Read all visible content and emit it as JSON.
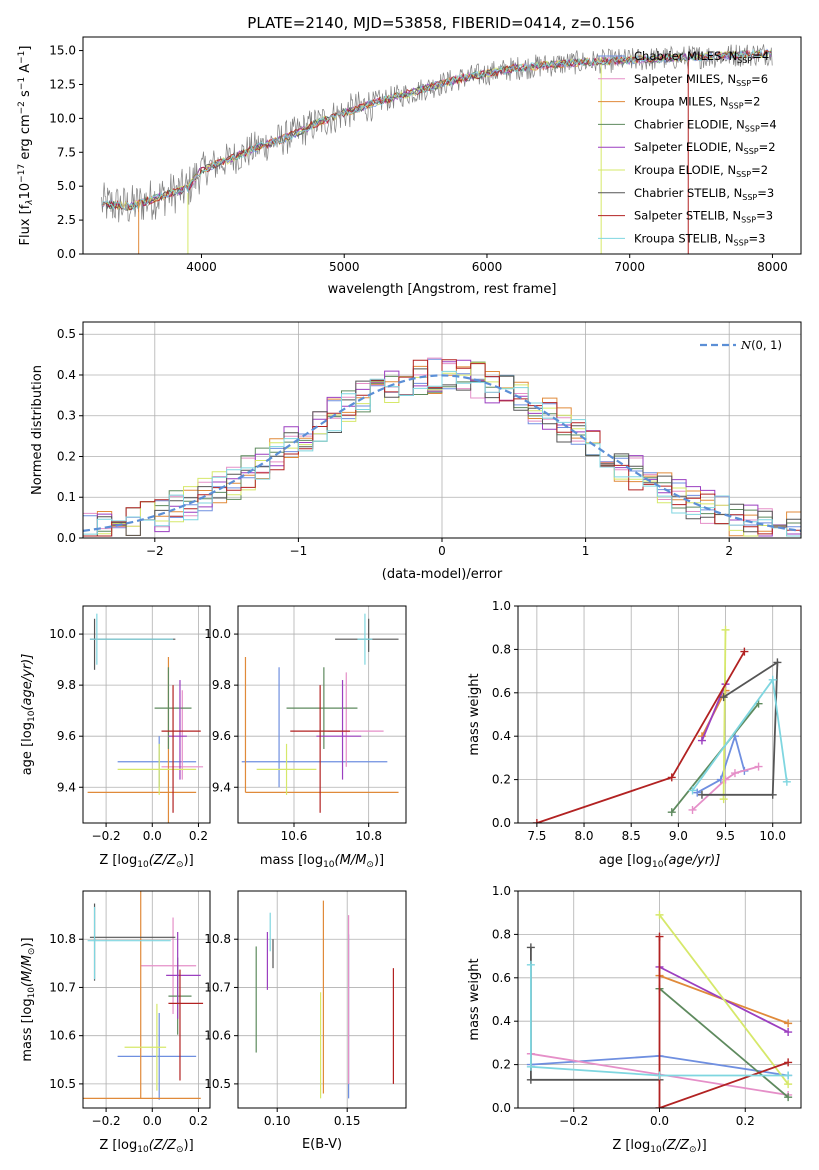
{
  "figure": {
    "title": "PLATE=2140, MJD=53858, FIBERID=0414, z=0.156"
  },
  "colors": {
    "Chabrier MILES": "#6f8fe0",
    "Salpeter MILES": "#e58fc8",
    "Kroupa MILES": "#e08a3a",
    "Chabrier ELODIE": "#5e8a5e",
    "Salpeter ELODIE": "#9b3fc0",
    "Kroupa ELODIE": "#d6e86a",
    "Chabrier STELIB": "#555555",
    "Salpeter STELIB": "#b22222",
    "Kroupa STELIB": "#7fd6e0",
    "spectrum": "#7f7f7f",
    "gaussian": "#5b8fd6"
  },
  "chart_data": [
    {
      "id": "spectrum",
      "type": "line",
      "xlabel": "wavelength [Angstrom, rest frame]",
      "ylabel": "Flux [f",
      "ylabel_tex": "λ",
      "ylabel_rest": "10",
      "ylabel_exp": "−17",
      "ylabel_tail": " erg cm",
      "ylabel_exp2": "−2",
      "ylabel_tail2": " s",
      "ylabel_exp3": "−1",
      "ylabel_tail3": " A",
      "ylabel_exp4": "−1",
      "ylabel_end": "]",
      "xlim": [
        3170,
        8200
      ],
      "ylim": [
        0,
        16
      ],
      "xticks": [
        "4000",
        "5000",
        "6000",
        "7000",
        "8000"
      ],
      "yticks": [
        "0.0",
        "2.5",
        "5.0",
        "7.5",
        "10.0",
        "12.5",
        "15.0"
      ],
      "legend_position": "top-right",
      "legend": [
        {
          "name": "Chabrier MILES",
          "pre": "Chabrier MILES, N",
          "sub": "SSP",
          "post": "=4"
        },
        {
          "name": "Salpeter MILES",
          "pre": "Salpeter MILES, N",
          "sub": "SSP",
          "post": "=6"
        },
        {
          "name": "Kroupa MILES",
          "pre": "Kroupa MILES, N",
          "sub": "SSP",
          "post": "=2"
        },
        {
          "name": "Chabrier ELODIE",
          "pre": "Chabrier ELODIE, N",
          "sub": "SSP",
          "post": "=4"
        },
        {
          "name": "Salpeter ELODIE",
          "pre": "Salpeter ELODIE, N",
          "sub": "SSP",
          "post": "=2"
        },
        {
          "name": "Kroupa ELODIE",
          "pre": "Kroupa ELODIE, N",
          "sub": "SSP",
          "post": "=2"
        },
        {
          "name": "Chabrier STELIB",
          "pre": "Chabrier STELIB, N",
          "sub": "SSP",
          "post": "=3"
        },
        {
          "name": "Salpeter STELIB",
          "pre": "Salpeter STELIB, N",
          "sub": "SSP",
          "post": "=3"
        },
        {
          "name": "Kroupa STELIB",
          "pre": "Kroupa STELIB, N",
          "sub": "SSP",
          "post": "=3"
        }
      ],
      "continuum": {
        "x": [
          3300,
          3500,
          3700,
          3900,
          4000,
          4200,
          4400,
          4600,
          4800,
          5000,
          5200,
          5400,
          5600,
          5800,
          6000,
          6200,
          6400,
          6600,
          6800,
          7000,
          7200,
          7400,
          7600,
          7800,
          8000
        ],
        "y": [
          3.7,
          3.5,
          4.2,
          4.8,
          6.2,
          7.0,
          7.9,
          8.6,
          9.6,
          10.4,
          11.1,
          11.7,
          12.3,
          12.9,
          13.3,
          13.7,
          13.9,
          14.1,
          14.2,
          14.3,
          14.4,
          14.5,
          14.6,
          14.7,
          14.8
        ]
      }
    },
    {
      "id": "residuals",
      "type": "step",
      "xlabel": "(data-model)/error",
      "ylabel": "Normed distribution",
      "xlim": [
        -2.5,
        2.5
      ],
      "ylim": [
        0,
        0.53
      ],
      "xticks": [
        "−2",
        "−1",
        "0",
        "1",
        "2"
      ],
      "yticks": [
        "0.0",
        "0.1",
        "0.2",
        "0.3",
        "0.4",
        "0.5"
      ],
      "legend": {
        "pre": "N",
        "post": "(0, 1)"
      },
      "legend_position": "top-right",
      "gaussian": {
        "mean": 0,
        "sigma": 1
      }
    },
    {
      "id": "age-Z",
      "type": "errorbar",
      "xlabel": "Z [log",
      "xlabel_sub": "10",
      "xlabel_tail": "(Z/Z",
      "xlabel_sun": "⊙",
      "xlabel_end": ")]",
      "ylabel": "age  [log",
      "ylabel_sub": "10",
      "ylabel_tail": "(age/yr)]",
      "xlim": [
        -0.3,
        0.25
      ],
      "ylim": [
        9.26,
        10.11
      ],
      "xticks": [
        "−0.2",
        "0.0",
        "0.2"
      ],
      "yticks": [
        "9.4",
        "9.6",
        "9.8",
        "10.0"
      ],
      "points": [
        {
          "series": "Chabrier MILES",
          "x": 0.03,
          "xerr": [
            0.18,
            0.16
          ],
          "y": 9.5,
          "yerr": [
            0.1,
            0.1
          ]
        },
        {
          "series": "Salpeter MILES",
          "x": 0.13,
          "xerr": [
            0.09,
            0.09
          ],
          "y": 9.48,
          "yerr": [
            0.05,
            0.3
          ]
        },
        {
          "series": "Kroupa MILES",
          "x": 0.07,
          "xerr": [
            0.35,
            0.12
          ],
          "y": 9.38,
          "yerr": [
            0.12,
            0.53
          ]
        },
        {
          "series": "Chabrier ELODIE",
          "x": 0.07,
          "xerr": [
            0.06,
            0.1
          ],
          "y": 9.71,
          "yerr": [
            0.16,
            0.16
          ]
        },
        {
          "series": "Salpeter ELODIE",
          "x": 0.12,
          "xerr": [
            0.05,
            0.03
          ],
          "y": 9.6,
          "yerr": [
            0.17,
            0.22
          ]
        },
        {
          "series": "Kroupa ELODIE",
          "x": 0.03,
          "xerr": [
            0.18,
            0.16
          ],
          "y": 9.47,
          "yerr": [
            0.1,
            0.1
          ]
        },
        {
          "series": "Chabrier STELIB",
          "x": -0.25,
          "xerr": [
            0.02,
            0.35
          ],
          "y": 9.98,
          "yerr": [
            0.12,
            0.08
          ]
        },
        {
          "series": "Salpeter STELIB",
          "x": 0.09,
          "xerr": [
            0.05,
            0.12
          ],
          "y": 9.62,
          "yerr": [
            0.32,
            0.18
          ]
        },
        {
          "series": "Kroupa STELIB",
          "x": -0.24,
          "xerr": [
            0.03,
            0.33
          ],
          "y": 9.98,
          "yerr": [
            0.1,
            0.1
          ]
        }
      ]
    },
    {
      "id": "age-mass",
      "type": "errorbar",
      "xlabel": "mass [log",
      "xlabel_sub": "10",
      "xlabel_tail": "(M/M",
      "xlabel_sun": "⊙",
      "xlabel_end": ")]",
      "ylabel": "",
      "xlim": [
        10.45,
        10.9
      ],
      "ylim": [
        9.26,
        10.11
      ],
      "xticks": [
        "10.6",
        "10.8"
      ],
      "yticks": [
        "9.4",
        "9.6",
        "9.8",
        "10.0"
      ],
      "points": [
        {
          "series": "Chabrier MILES",
          "x": 10.56,
          "xerr": [
            0.1,
            0.29
          ],
          "y": 9.5,
          "yerr": [
            0.1,
            0.37
          ]
        },
        {
          "series": "Salpeter MILES",
          "x": 10.74,
          "xerr": [
            0.05,
            0.1
          ],
          "y": 9.62,
          "yerr": [
            0.14,
            0.23
          ]
        },
        {
          "series": "Kroupa MILES",
          "x": 10.47,
          "xerr": [
            0.0,
            0.41
          ],
          "y": 9.38,
          "yerr": [
            0.0,
            0.53
          ]
        },
        {
          "series": "Chabrier ELODIE",
          "x": 10.68,
          "xerr": [
            0.1,
            0.09
          ],
          "y": 9.71,
          "yerr": [
            0.16,
            0.16
          ]
        },
        {
          "series": "Salpeter ELODIE",
          "x": 10.73,
          "xerr": [
            0.07,
            0.05
          ],
          "y": 9.6,
          "yerr": [
            0.17,
            0.22
          ]
        },
        {
          "series": "Kroupa ELODIE",
          "x": 10.58,
          "xerr": [
            0.08,
            0.08
          ],
          "y": 9.47,
          "yerr": [
            0.1,
            0.1
          ]
        },
        {
          "series": "Chabrier STELIB",
          "x": 10.8,
          "xerr": [
            0.09,
            0.08
          ],
          "y": 9.98,
          "yerr": [
            0.05,
            0.08
          ]
        },
        {
          "series": "Salpeter STELIB",
          "x": 10.67,
          "xerr": [
            0.08,
            0.08
          ],
          "y": 9.62,
          "yerr": [
            0.32,
            0.18
          ]
        },
        {
          "series": "Kroupa STELIB",
          "x": 10.79,
          "xerr": [
            0.02,
            0.02
          ],
          "y": 9.98,
          "yerr": [
            0.1,
            0.1
          ]
        }
      ]
    },
    {
      "id": "weight-age",
      "type": "line",
      "xlabel": "age  [log",
      "xlabel_sub": "10",
      "xlabel_tail": "(age/yr)]",
      "ylabel": "mass weight",
      "xlim": [
        7.3,
        10.3
      ],
      "ylim": [
        0,
        1
      ],
      "xticks": [
        "7.5",
        "8.0",
        "8.5",
        "9.0",
        "9.5",
        "10.0"
      ],
      "yticks": [
        "0.0",
        "0.2",
        "0.4",
        "0.6",
        "0.8",
        "1.0"
      ],
      "series": [
        {
          "name": "Chabrier MILES",
          "x": [
            9.2,
            9.45,
            9.6,
            9.7
          ],
          "y": [
            0.14,
            0.2,
            0.4,
            0.24
          ]
        },
        {
          "name": "Salpeter MILES",
          "x": [
            9.15,
            9.5,
            9.6,
            9.85
          ],
          "y": [
            0.06,
            0.2,
            0.23,
            0.26
          ]
        },
        {
          "name": "Kroupa MILES",
          "x": [
            9.25,
            9.5
          ],
          "y": [
            0.4,
            0.61
          ]
        },
        {
          "name": "Chabrier ELODIE",
          "x": [
            8.93,
            9.85
          ],
          "y": [
            0.05,
            0.55
          ]
        },
        {
          "name": "Salpeter ELODIE",
          "x": [
            9.25,
            9.5
          ],
          "y": [
            0.38,
            0.64
          ]
        },
        {
          "name": "Kroupa ELODIE",
          "x": [
            9.48,
            9.5
          ],
          "y": [
            0.11,
            0.89
          ]
        },
        {
          "name": "Chabrier STELIB",
          "x": [
            9.25,
            10.0,
            10.05,
            9.48
          ],
          "y": [
            0.13,
            0.13,
            0.74,
            0.58
          ]
        },
        {
          "name": "Salpeter STELIB",
          "x": [
            7.5,
            8.93,
            9.7
          ],
          "y": [
            0.0,
            0.21,
            0.79
          ]
        },
        {
          "name": "Kroupa STELIB",
          "x": [
            9.15,
            10.0,
            10.15
          ],
          "y": [
            0.15,
            0.66,
            0.19
          ]
        }
      ]
    },
    {
      "id": "mass-Z",
      "type": "errorbar",
      "xlabel": "Z [log",
      "xlabel_sub": "10",
      "xlabel_tail": "(Z/Z",
      "xlabel_sun": "⊙",
      "xlabel_end": ")]",
      "ylabel": "mass [log",
      "ylabel_sub": "10",
      "ylabel_tail": "(M/M",
      "ylabel_sun": "⊙",
      "ylabel_end": ")]",
      "xlim": [
        -0.3,
        0.25
      ],
      "ylim": [
        10.45,
        10.9
      ],
      "xticks": [
        "−0.2",
        "0.0",
        "0.2"
      ],
      "yticks": [
        "10.5",
        "10.6",
        "10.7",
        "10.8"
      ],
      "points": [
        {
          "series": "Chabrier MILES",
          "x": 0.03,
          "xerr": [
            0.18,
            0.16
          ],
          "y": 10.557,
          "yerr": [
            0.09,
            0.09
          ]
        },
        {
          "series": "Salpeter MILES",
          "x": 0.09,
          "xerr": [
            0.14,
            0.1
          ],
          "y": 10.745,
          "yerr": [
            0.1,
            0.1
          ]
        },
        {
          "series": "Kroupa MILES",
          "x": -0.05,
          "xerr": [
            0.27,
            0.26
          ],
          "y": 10.47,
          "yerr": [
            0.0,
            0.45
          ]
        },
        {
          "series": "Chabrier ELODIE",
          "x": 0.11,
          "xerr": [
            0.04,
            0.06
          ],
          "y": 10.682,
          "yerr": [
            0.08,
            0.08
          ]
        },
        {
          "series": "Salpeter ELODIE",
          "x": 0.11,
          "xerr": [
            0.05,
            0.1
          ],
          "y": 10.725,
          "yerr": [
            0.09,
            0.09
          ]
        },
        {
          "series": "Kroupa ELODIE",
          "x": 0.02,
          "xerr": [
            0.14,
            0.04
          ],
          "y": 10.576,
          "yerr": [
            0.09,
            0.09
          ]
        },
        {
          "series": "Chabrier STELIB",
          "x": -0.25,
          "xerr": [
            0.02,
            0.35
          ],
          "y": 10.804,
          "yerr": [
            0.09,
            0.07
          ]
        },
        {
          "series": "Salpeter STELIB",
          "x": 0.12,
          "xerr": [
            0.05,
            0.1
          ],
          "y": 10.667,
          "yerr": [
            0.16,
            0.07
          ]
        },
        {
          "series": "Kroupa STELIB",
          "x": -0.25,
          "xerr": [
            0.03,
            0.33
          ],
          "y": 10.797,
          "yerr": [
            0.08,
            0.07
          ]
        }
      ]
    },
    {
      "id": "mass-EBV",
      "type": "errorbar",
      "xlabel": "E(B-V)",
      "ylabel": "",
      "xlim": [
        0.072,
        0.192
      ],
      "ylim": [
        10.45,
        10.9
      ],
      "xticks": [
        "0.10",
        "0.15"
      ],
      "yticks": [
        "10.5",
        "10.6",
        "10.7",
        "10.8"
      ],
      "points": [
        {
          "series": "Chabrier MILES",
          "x": 0.151,
          "y": 10.68,
          "yerr": [
            0.21,
            0.13
          ]
        },
        {
          "series": "Salpeter MILES",
          "x": 0.151,
          "y": 10.66,
          "yerr": [
            0.16,
            0.19
          ]
        },
        {
          "series": "Kroupa MILES",
          "x": 0.133,
          "y": 10.67,
          "yerr": [
            0.19,
            0.21
          ]
        },
        {
          "series": "Chabrier ELODIE",
          "x": 0.085,
          "y": 10.675,
          "yerr": [
            0.11,
            0.11
          ]
        },
        {
          "series": "Salpeter ELODIE",
          "x": 0.093,
          "y": 10.755,
          "yerr": [
            0.06,
            0.06
          ]
        },
        {
          "series": "Kroupa ELODIE",
          "x": 0.131,
          "y": 10.58,
          "yerr": [
            0.11,
            0.11
          ]
        },
        {
          "series": "Chabrier STELIB",
          "x": 0.097,
          "y": 10.77,
          "yerr": [
            0.03,
            0.03
          ]
        },
        {
          "series": "Salpeter STELIB",
          "x": 0.183,
          "y": 10.62,
          "yerr": [
            0.12,
            0.12
          ]
        },
        {
          "series": "Kroupa STELIB",
          "x": 0.095,
          "y": 10.815,
          "yerr": [
            0.04,
            0.04
          ]
        }
      ]
    },
    {
      "id": "weight-Z",
      "type": "line",
      "xlabel": "Z [log",
      "xlabel_sub": "10",
      "xlabel_tail": "(Z/Z",
      "xlabel_sun": "⊙",
      "xlabel_end": ")]",
      "ylabel": "mass weight",
      "xlim": [
        -0.33,
        0.33
      ],
      "ylim": [
        0,
        1
      ],
      "xticks": [
        "−0.2",
        "0.0",
        "0.2"
      ],
      "yticks": [
        "0.0",
        "0.2",
        "0.4",
        "0.6",
        "0.8",
        "1.0"
      ],
      "series": [
        {
          "name": "Chabrier MILES",
          "x": [
            -0.3,
            0.0,
            0.3
          ],
          "y": [
            0.2,
            0.24,
            0.15
          ]
        },
        {
          "name": "Salpeter MILES",
          "x": [
            -0.3,
            0.3
          ],
          "y": [
            0.25,
            0.06
          ]
        },
        {
          "name": "Kroupa MILES",
          "x": [
            0.0,
            0.3
          ],
          "y": [
            0.61,
            0.39
          ]
        },
        {
          "name": "Chabrier ELODIE",
          "x": [
            0.0,
            0.3
          ],
          "y": [
            0.55,
            0.05
          ]
        },
        {
          "name": "Salpeter ELODIE",
          "x": [
            0.0,
            0.3
          ],
          "y": [
            0.65,
            0.35
          ]
        },
        {
          "name": "Kroupa ELODIE",
          "x": [
            0.0,
            0.3
          ],
          "y": [
            0.89,
            0.11
          ]
        },
        {
          "name": "Chabrier STELIB",
          "x": [
            -0.3,
            -0.3,
            0.0
          ],
          "y": [
            0.74,
            0.13,
            0.13
          ]
        },
        {
          "name": "Salpeter STELIB",
          "x": [
            0.0,
            0.0,
            0.3
          ],
          "y": [
            0.79,
            0.0,
            0.21
          ]
        },
        {
          "name": "Kroupa STELIB",
          "x": [
            -0.3,
            -0.3,
            0.0,
            0.3
          ],
          "y": [
            0.66,
            0.19,
            0.15,
            0.15
          ]
        }
      ]
    }
  ]
}
